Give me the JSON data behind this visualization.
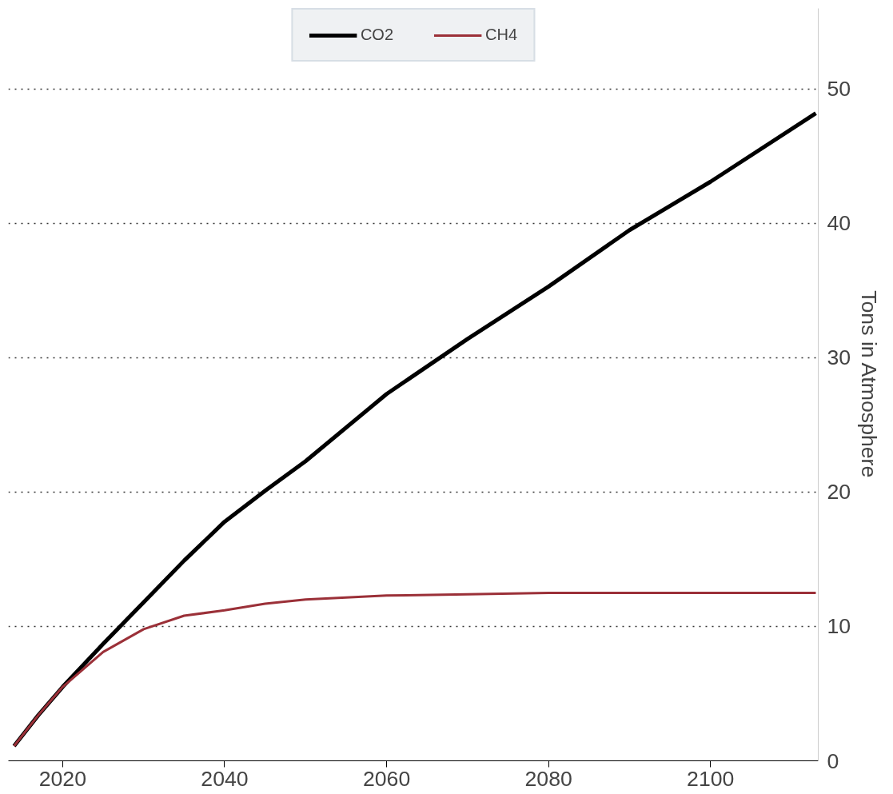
{
  "chart_data": {
    "type": "line",
    "y2label": "Tons in Atmosphere",
    "x": [
      2014,
      2017,
      2020,
      2025,
      2030,
      2035,
      2040,
      2045,
      2050,
      2060,
      2070,
      2080,
      2090,
      2100,
      2113
    ],
    "series": [
      {
        "name": "CO2",
        "color": "#000000",
        "values": [
          1.1,
          3.4,
          5.5,
          8.7,
          11.8,
          14.9,
          17.8,
          20.1,
          22.3,
          27.3,
          31.4,
          35.3,
          39.5,
          43.1,
          48.2
        ]
      },
      {
        "name": "CH4",
        "color": "#9b3038",
        "values": [
          1.1,
          3.4,
          5.5,
          8.1,
          9.8,
          10.8,
          11.2,
          11.7,
          12.0,
          12.3,
          12.4,
          12.5,
          12.5,
          12.5,
          12.5
        ]
      }
    ],
    "xlim": [
      2013.3,
      2113.3
    ],
    "xticks": [
      2020,
      2040,
      2060,
      2080,
      2100
    ],
    "ylim": [
      0,
      56
    ],
    "yticks": [
      0,
      10,
      20,
      30,
      40,
      50
    ],
    "grid": "y",
    "legend": "top",
    "line_style": "solid",
    "marker": "none"
  }
}
